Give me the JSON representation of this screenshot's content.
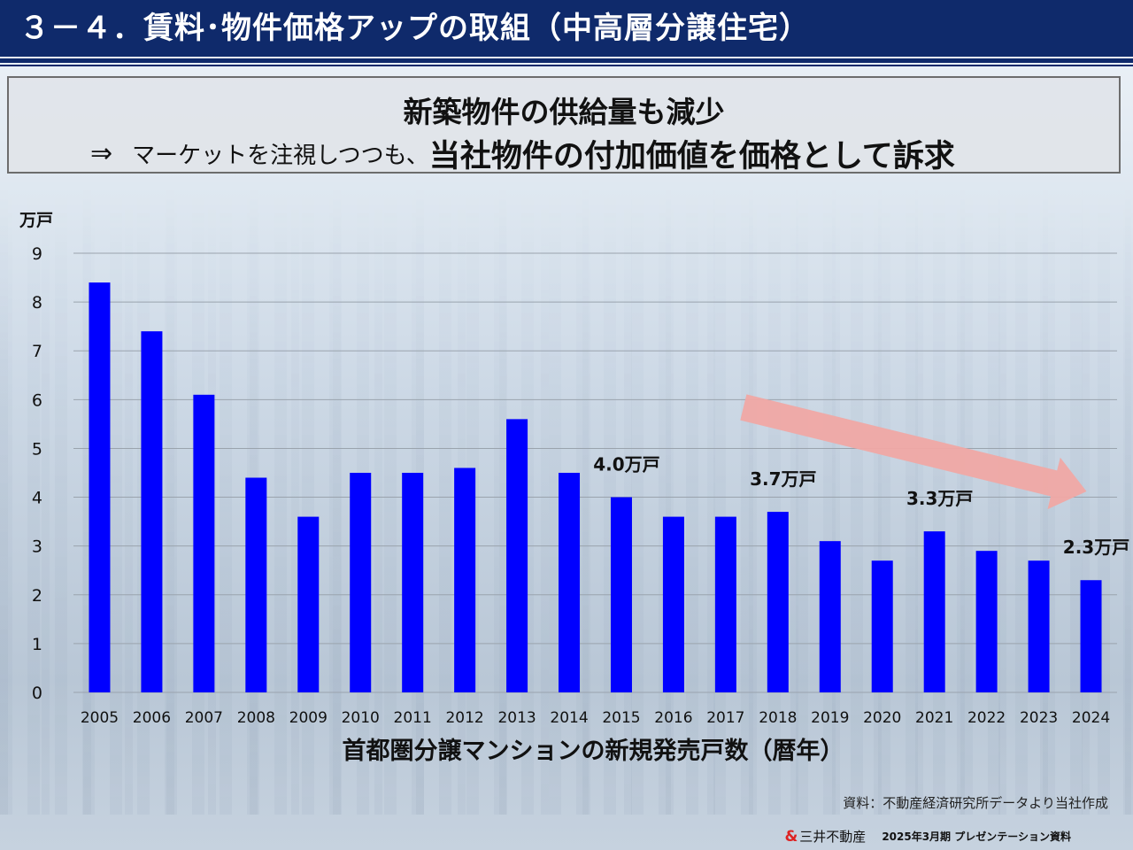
{
  "header": {
    "title": "３－４．賃料･物件価格アップの取組（中高層分譲住宅）"
  },
  "message": {
    "line1": "新築物件の供給量も減少",
    "arrow": "⇒",
    "line2_lead": "マーケットを注視しつつも、",
    "line2_emphasis": "当社物件の付加価値を価格として訴求"
  },
  "colors": {
    "header_bg": "#0f2a6b",
    "bar": "#0000ff",
    "trend_arrow": "#f0a8a4"
  },
  "chart_data": {
    "type": "bar",
    "unit_label": "万戸",
    "xlabel": "首都圏分譲マンションの新規発売戸数（暦年）",
    "ylim": [
      0,
      9
    ],
    "yticks": [
      0,
      1,
      2,
      3,
      4,
      5,
      6,
      7,
      8,
      9
    ],
    "grid": true,
    "categories": [
      "2005",
      "2006",
      "2007",
      "2008",
      "2009",
      "2010",
      "2011",
      "2012",
      "2013",
      "2014",
      "2015",
      "2016",
      "2017",
      "2018",
      "2019",
      "2020",
      "2021",
      "2022",
      "2023",
      "2024"
    ],
    "values": [
      8.4,
      7.4,
      6.1,
      4.4,
      3.6,
      4.5,
      4.5,
      4.6,
      5.6,
      4.5,
      4.0,
      3.6,
      3.6,
      3.7,
      3.1,
      2.7,
      3.3,
      2.9,
      2.7,
      2.3
    ],
    "annotations": [
      {
        "category": "2015",
        "text": "4.0万戸"
      },
      {
        "category": "2018",
        "text": "3.7万戸"
      },
      {
        "category": "2021",
        "text": "3.3万戸"
      },
      {
        "category": "2024",
        "text": "2.3万戸"
      }
    ],
    "trend_arrow": {
      "from_category": "2017",
      "to_category": "2024",
      "direction": "down"
    }
  },
  "source_note": "資料：不動産経済研究所データより当社作成",
  "footer": {
    "logo": "&",
    "company": "三井不動産",
    "document": "2025年3月期  プレゼンテーション資料"
  }
}
